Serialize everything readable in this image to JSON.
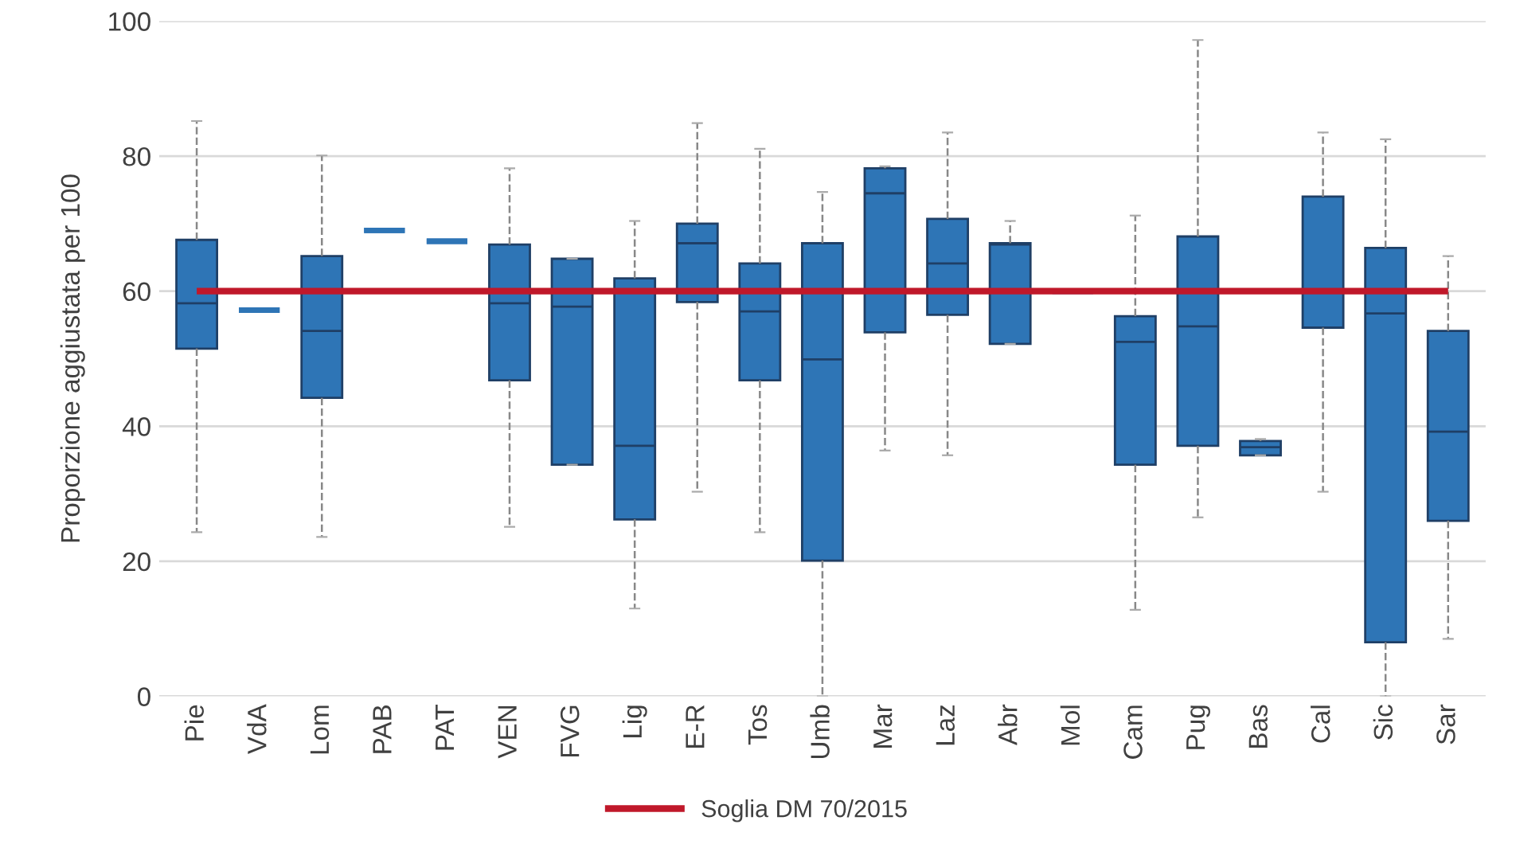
{
  "chart_data": {
    "type": "box",
    "ylabel": "Proporzione aggiustata per 100",
    "categories": [
      "Pie",
      "VdA",
      "Lom",
      "PAB",
      "PAT",
      "VEN",
      "FVG",
      "Lig",
      "E-R",
      "Tos",
      "Umb",
      "Mar",
      "Laz",
      "Abr",
      "Mol",
      "Cam",
      "Pug",
      "Bas",
      "Cal",
      "Sic",
      "Sar"
    ],
    "boxes": [
      {
        "low": 24.3,
        "q1": 51.5,
        "median": 58.2,
        "q3": 67.6,
        "high": 85.2
      },
      {
        "low": 57.2,
        "q1": 57.2,
        "median": 57.2,
        "q3": 57.2,
        "high": 57.2
      },
      {
        "low": 23.6,
        "q1": 44.2,
        "median": 54.1,
        "q3": 65.2,
        "high": 80.1
      },
      {
        "low": 69.0,
        "q1": 69.0,
        "median": 69.0,
        "q3": 69.0,
        "high": 69.0
      },
      {
        "low": 67.4,
        "q1": 67.4,
        "median": 67.4,
        "q3": 67.4,
        "high": 67.4
      },
      {
        "low": 25.1,
        "q1": 46.8,
        "median": 58.2,
        "q3": 66.9,
        "high": 78.2
      },
      {
        "low": 34.3,
        "q1": 34.3,
        "median": 57.7,
        "q3": 64.8,
        "high": 64.8
      },
      {
        "low": 13.0,
        "q1": 26.2,
        "median": 37.1,
        "q3": 61.9,
        "high": 70.4
      },
      {
        "low": 30.3,
        "q1": 58.4,
        "median": 67.1,
        "q3": 70.0,
        "high": 84.9
      },
      {
        "low": 24.3,
        "q1": 46.8,
        "median": 57.0,
        "q3": 64.1,
        "high": 81.1
      },
      {
        "low": 0,
        "q1": 20.1,
        "median": 49.9,
        "q3": 67.1,
        "high": 74.7
      },
      {
        "low": 36.4,
        "q1": 53.9,
        "median": 74.5,
        "q3": 78.2,
        "high": 78.5
      },
      {
        "low": 35.7,
        "q1": 56.5,
        "median": 64.1,
        "q3": 70.7,
        "high": 83.5
      },
      {
        "low": 52.2,
        "q1": 52.2,
        "median": 66.9,
        "q3": 67.1,
        "high": 70.4
      },
      {
        "low": 60,
        "q1": 60,
        "median": 60,
        "q3": 60,
        "high": 60
      },
      {
        "low": 12.8,
        "q1": 34.3,
        "median": 52.5,
        "q3": 56.3,
        "high": 71.2
      },
      {
        "low": 26.5,
        "q1": 37.1,
        "median": 54.8,
        "q3": 68.1,
        "high": 97.2
      },
      {
        "low": 35.7,
        "q1": 35.7,
        "median": 36.9,
        "q3": 37.8,
        "high": 38.1
      },
      {
        "low": 30.3,
        "q1": 54.6,
        "median": 60,
        "q3": 74.0,
        "high": 83.5
      },
      {
        "low": 0,
        "q1": 8.0,
        "median": 56.7,
        "q3": 66.4,
        "high": 82.5
      },
      {
        "low": 8.5,
        "q1": 26.0,
        "median": 39.2,
        "q3": 54.1,
        "high": 65.2
      }
    ],
    "color": "#2e75b6",
    "ylim": [
      0,
      100
    ],
    "yticks": [
      0,
      20,
      40,
      60,
      80,
      100
    ],
    "grid": "y",
    "ref_lines": [
      {
        "axis": "y",
        "value": 60,
        "label": "Soglia DM 70/2015",
        "color": "#c0182a"
      }
    ],
    "legend": "bottom"
  }
}
